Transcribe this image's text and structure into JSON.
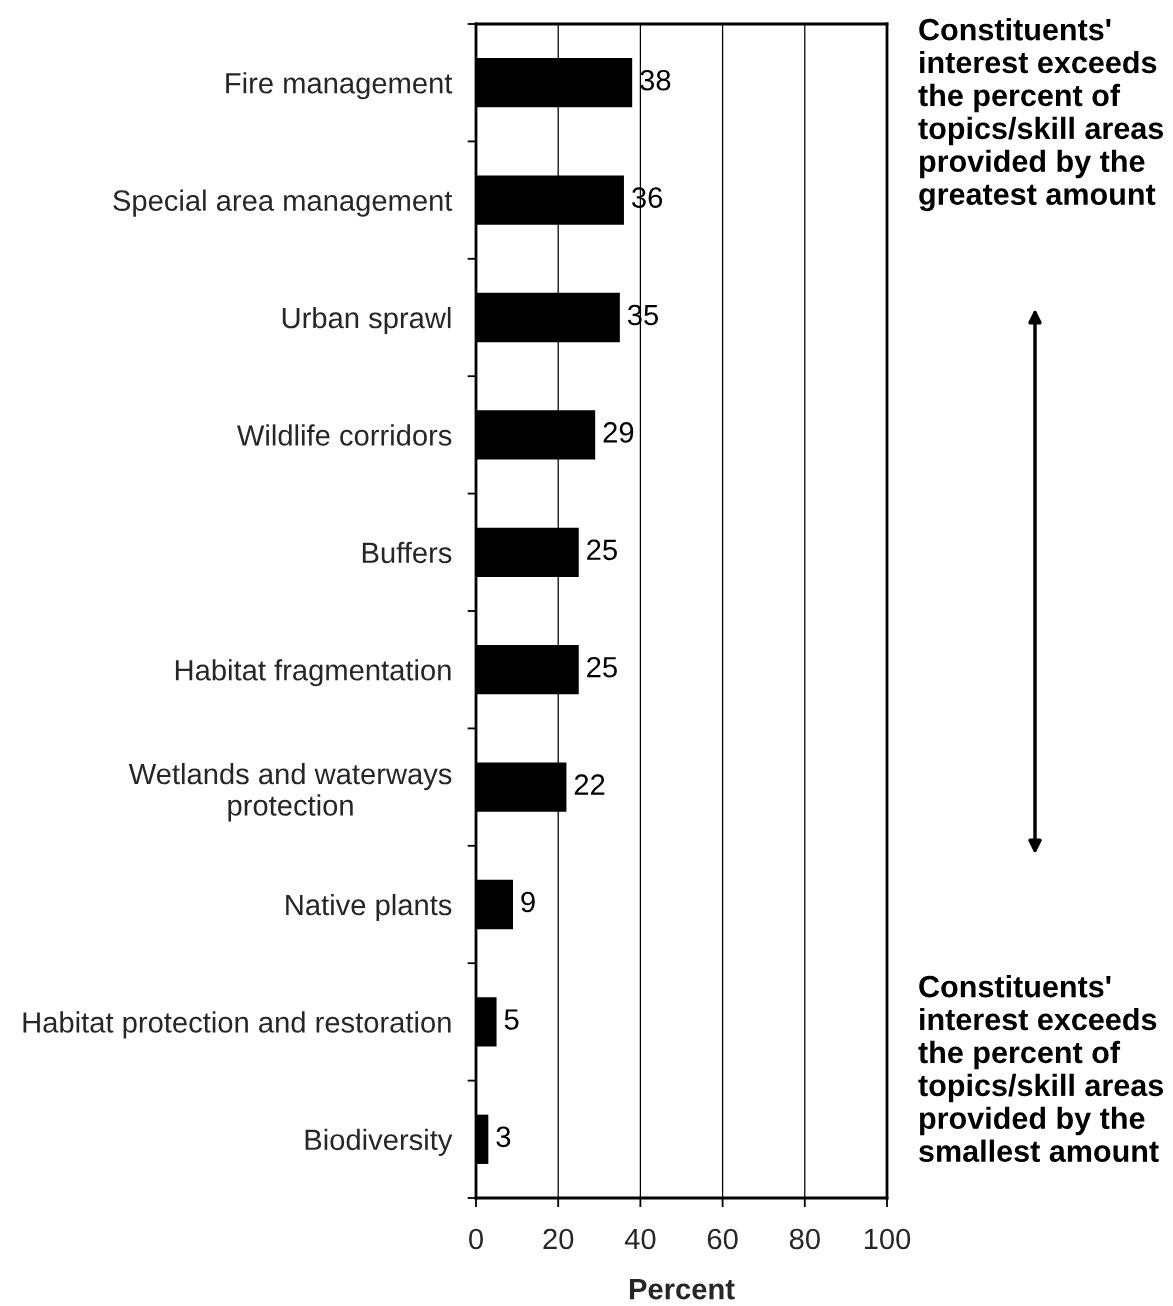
{
  "chart_data": {
    "type": "bar",
    "orientation": "horizontal",
    "categories": [
      "Fire management",
      "Special area management",
      "Urban sprawl",
      "Wildlife corridors",
      "Buffers",
      "Habitat fragmentation",
      "Wetlands and waterways\nprotection",
      "Native plants",
      "Habitat protection and restoration",
      "Biodiversity"
    ],
    "values": [
      38,
      36,
      35,
      29,
      25,
      25,
      22,
      9,
      5,
      3
    ],
    "color": "#000000",
    "xlim": [
      0,
      100
    ],
    "xticks": [
      0,
      20,
      40,
      60,
      80,
      100
    ],
    "xlabel": "Percent",
    "grid": "x",
    "data_labels": true,
    "annotations": [
      "Constituents'\ninterest exceeds\nthe percent of\ntopics/skill areas\nprovided by the\ngreatest amount",
      "Constituents'\ninterest exceeds\nthe percent of\ntopics/skill areas\nprovided by the\nsmallest amount"
    ]
  }
}
